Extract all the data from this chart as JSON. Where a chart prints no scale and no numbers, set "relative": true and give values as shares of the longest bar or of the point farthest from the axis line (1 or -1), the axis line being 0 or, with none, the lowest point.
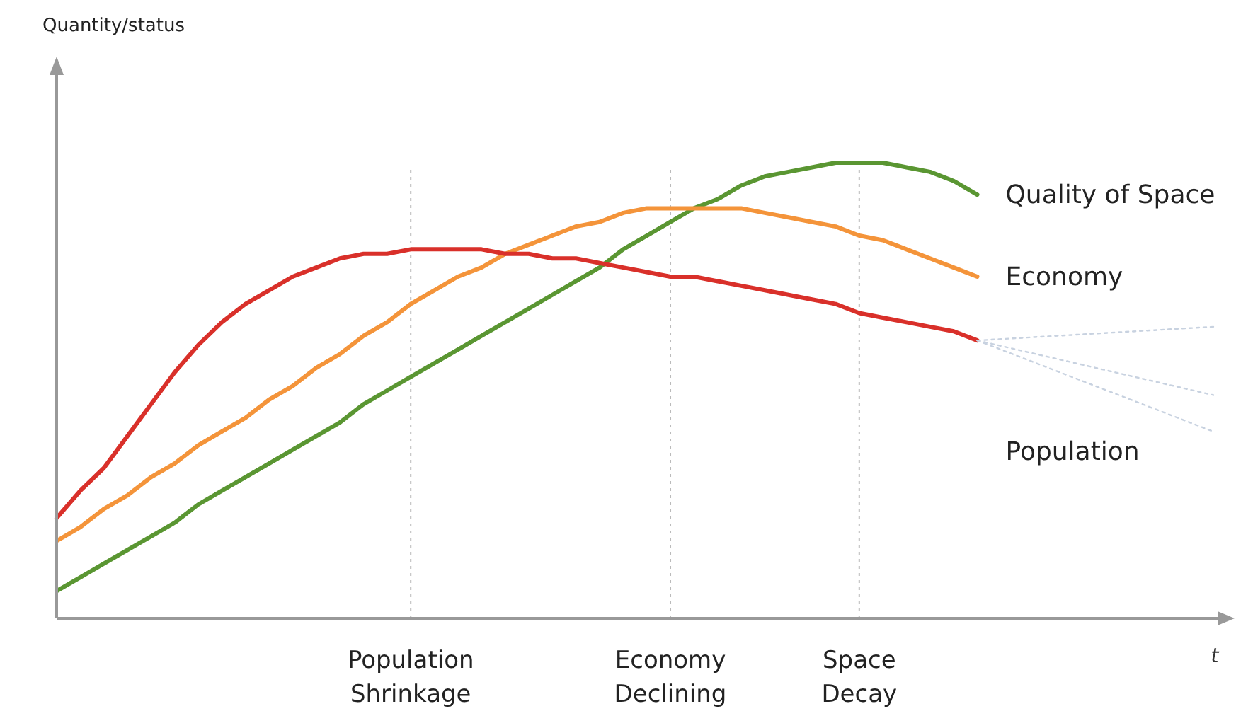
{
  "chart_data": {
    "type": "line",
    "relative": true,
    "annotations": [
      "Quantity/status"
    ],
    "xlabel": "t",
    "grid": "x",
    "line_style": "solid",
    "categories": [
      null,
      null,
      null,
      null,
      null,
      null,
      null,
      null,
      null,
      null,
      null,
      null,
      null,
      null,
      null,
      "Population Shrinkage",
      null,
      null,
      null,
      null,
      null,
      null,
      null,
      null,
      null,
      null,
      "Economy Declining",
      null,
      null,
      null,
      null,
      null,
      null,
      null,
      "Space Decay",
      null,
      null,
      null,
      null,
      null,
      null,
      null,
      null,
      null,
      null,
      null,
      null,
      null,
      null,
      null
    ],
    "series": [
      {
        "name": "Quality of Space",
        "color": "#5a9632",
        "values": [
          0.06,
          0.09,
          0.12,
          0.15,
          0.18,
          0.21,
          0.25,
          0.28,
          0.31,
          0.34,
          0.37,
          0.4,
          0.43,
          0.47,
          0.5,
          0.53,
          0.56,
          0.59,
          0.62,
          0.65,
          0.68,
          0.71,
          0.74,
          0.77,
          0.81,
          0.84,
          0.87,
          0.9,
          0.92,
          0.95,
          0.97,
          0.98,
          0.99,
          1.0,
          1.0,
          1.0,
          0.99,
          0.98,
          0.96,
          0.93,
          null,
          null,
          null,
          null,
          null,
          null,
          null,
          null,
          null,
          null
        ]
      },
      {
        "name": "Economy",
        "color": "#f4943a",
        "values": [
          0.17,
          0.2,
          0.24,
          0.27,
          0.31,
          0.34,
          0.38,
          0.41,
          0.44,
          0.48,
          0.51,
          0.55,
          0.58,
          0.62,
          0.65,
          0.69,
          0.72,
          0.75,
          0.77,
          0.8,
          0.82,
          0.84,
          0.86,
          0.87,
          0.89,
          0.9,
          0.9,
          0.9,
          0.9,
          0.9,
          0.89,
          0.88,
          0.87,
          0.86,
          0.84,
          0.83,
          0.81,
          0.79,
          0.77,
          0.75,
          null,
          null,
          null,
          null,
          null,
          null,
          null,
          null,
          null,
          null
        ]
      },
      {
        "name": "Population",
        "color": "#d9302a",
        "values": [
          0.22,
          0.28,
          0.33,
          0.4,
          0.47,
          0.54,
          0.6,
          0.65,
          0.69,
          0.72,
          0.75,
          0.77,
          0.79,
          0.8,
          0.8,
          0.81,
          0.81,
          0.81,
          0.81,
          0.8,
          0.8,
          0.79,
          0.79,
          0.78,
          0.77,
          0.76,
          0.75,
          0.75,
          0.74,
          0.73,
          0.72,
          0.71,
          0.7,
          0.69,
          0.67,
          0.66,
          0.65,
          0.64,
          0.63,
          0.61,
          null,
          null,
          null,
          null,
          null,
          null,
          null,
          null,
          null,
          null
        ]
      },
      {
        "color": "#c8d2e0",
        "line_style": "dotted",
        "values": [
          null,
          null,
          null,
          null,
          null,
          null,
          null,
          null,
          null,
          null,
          null,
          null,
          null,
          null,
          null,
          null,
          null,
          null,
          null,
          null,
          null,
          null,
          null,
          null,
          null,
          null,
          null,
          null,
          null,
          null,
          null,
          null,
          null,
          null,
          null,
          null,
          null,
          null,
          null,
          0.61,
          0.613,
          0.616,
          0.619,
          0.622,
          0.625,
          0.628,
          0.631,
          0.634,
          0.637,
          0.64
        ]
      },
      {
        "color": "#c8d2e0",
        "line_style": "dotted",
        "values": [
          null,
          null,
          null,
          null,
          null,
          null,
          null,
          null,
          null,
          null,
          null,
          null,
          null,
          null,
          null,
          null,
          null,
          null,
          null,
          null,
          null,
          null,
          null,
          null,
          null,
          null,
          null,
          null,
          null,
          null,
          null,
          null,
          null,
          null,
          null,
          null,
          null,
          null,
          null,
          0.61,
          0.598,
          0.586,
          0.574,
          0.562,
          0.55,
          0.538,
          0.526,
          0.514,
          0.502,
          0.49
        ]
      },
      {
        "color": "#c8d2e0",
        "line_style": "dotted",
        "values": [
          null,
          null,
          null,
          null,
          null,
          null,
          null,
          null,
          null,
          null,
          null,
          null,
          null,
          null,
          null,
          null,
          null,
          null,
          null,
          null,
          null,
          null,
          null,
          null,
          null,
          null,
          null,
          null,
          null,
          null,
          null,
          null,
          null,
          null,
          null,
          null,
          null,
          null,
          null,
          0.61,
          0.59,
          0.57,
          0.55,
          0.53,
          0.51,
          0.49,
          0.47,
          0.45,
          0.43,
          0.41
        ]
      }
    ]
  }
}
